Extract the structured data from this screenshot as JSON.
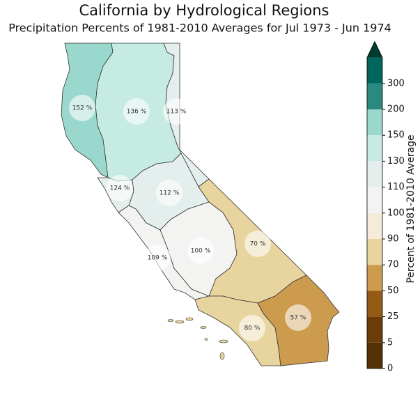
{
  "chart_data": {
    "type": "map",
    "title": "California by Hydrological Regions",
    "subtitle": "Precipitation Percents of 1981-2010 Averages for Jul 1973 - Jun 1974",
    "values": [
      152,
      136,
      113,
      124,
      112,
      109,
      100,
      70,
      80,
      57
    ],
    "value_labels": [
      "152 %",
      "136 %",
      "113 %",
      "124 %",
      "112 %",
      "109 %",
      "100 %",
      "70 %",
      "80 %",
      "57 %"
    ],
    "colorbar": {
      "label": "Percent of 1981-2010 Average",
      "extend": "max",
      "ticks": [
        0,
        5,
        25,
        50,
        70,
        90,
        100,
        110,
        130,
        150,
        200,
        300
      ],
      "colors": [
        "#543005",
        "#6b3c08",
        "#955a15",
        "#cd9b4e",
        "#e8d49e",
        "#f5ebd8",
        "#f3f4f2",
        "#e4efed",
        "#c6ebe3",
        "#9ad7cc",
        "#2a8a80",
        "#01665e",
        "#003c30"
      ]
    }
  }
}
